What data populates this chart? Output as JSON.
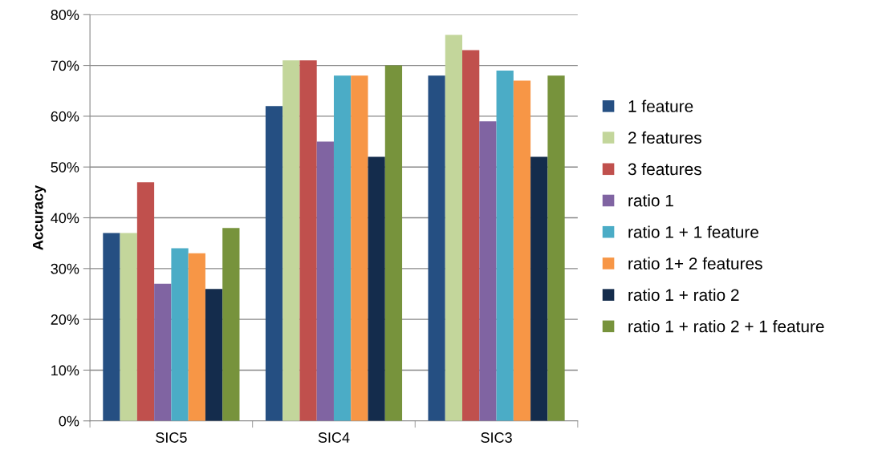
{
  "chart_data": {
    "type": "bar",
    "ylabel": "Accuracy",
    "categories": [
      "SIC5",
      "SIC4",
      "SIC3"
    ],
    "series": [
      {
        "name": "1 feature",
        "color": "#254f82",
        "values": [
          37,
          62,
          68
        ]
      },
      {
        "name": "2 features",
        "color": "#c3d69b",
        "values": [
          37,
          71,
          76
        ]
      },
      {
        "name": "3 features",
        "color": "#c0504d",
        "values": [
          47,
          71,
          73
        ]
      },
      {
        "name": "ratio 1",
        "color": "#8064a2",
        "values": [
          27,
          55,
          59
        ]
      },
      {
        "name": "ratio 1 + 1 feature",
        "color": "#4bacc6",
        "values": [
          34,
          68,
          69
        ]
      },
      {
        "name": "ratio 1+ 2 features",
        "color": "#f79646",
        "values": [
          33,
          68,
          67
        ]
      },
      {
        "name": "ratio 1 + ratio 2",
        "color": "#142c4c",
        "values": [
          26,
          52,
          52
        ]
      },
      {
        "name": "ratio 1 + ratio 2 + 1 feature",
        "color": "#77933c",
        "values": [
          38,
          70,
          68
        ]
      }
    ],
    "ylim": [
      0,
      80
    ],
    "yticks": [
      {
        "value": 0,
        "label": "0%"
      },
      {
        "value": 10,
        "label": "10%"
      },
      {
        "value": 20,
        "label": "20%"
      },
      {
        "value": 30,
        "label": "30%"
      },
      {
        "value": 40,
        "label": "40%"
      },
      {
        "value": 50,
        "label": "50%"
      },
      {
        "value": 60,
        "label": "60%"
      },
      {
        "value": 70,
        "label": "70%"
      },
      {
        "value": 80,
        "label": "80%"
      }
    ],
    "grid": "y",
    "legend": "right"
  }
}
